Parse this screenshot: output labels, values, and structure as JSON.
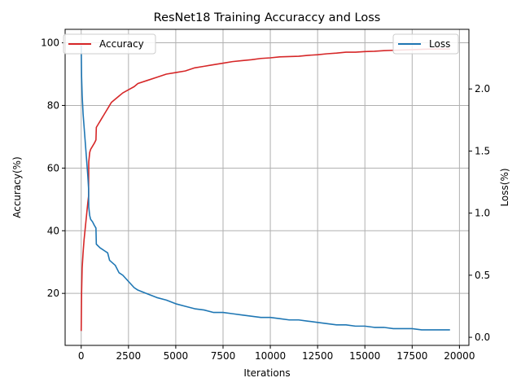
{
  "chart_data": {
    "type": "line",
    "title": "ResNet18 Training Accuraccy and Loss",
    "xlabel": "Iterations",
    "ylabel_left": "Accuracy(%)",
    "ylabel_right": "Loss(%)",
    "xlim": [
      -850,
      20500
    ],
    "ylim_left": [
      3.4,
      104.3
    ],
    "ylim_right": [
      -0.065,
      2.48
    ],
    "x_ticks": [
      0,
      2500,
      5000,
      7500,
      10000,
      12500,
      15000,
      17500,
      20000
    ],
    "y_left_ticks": [
      20,
      40,
      60,
      80,
      100
    ],
    "y_right_ticks": [
      0.0,
      0.5,
      1.0,
      1.5,
      2.0
    ],
    "y_right_tick_labels": [
      "0.0",
      "0.5",
      "1.0",
      "1.5",
      "2.0"
    ],
    "grid": true,
    "legends": [
      {
        "axis": "left",
        "placement": "upper-left",
        "entries": [
          "Accuracy"
        ]
      },
      {
        "axis": "right",
        "placement": "upper-right",
        "entries": [
          "Loss"
        ]
      }
    ],
    "series": [
      {
        "name": "Accuracy",
        "axis": "left",
        "color": "#d62728",
        "x": [
          0,
          20,
          50,
          100,
          150,
          200,
          250,
          300,
          350,
          390,
          400,
          450,
          500,
          600,
          700,
          780,
          800,
          900,
          1000,
          1100,
          1200,
          1300,
          1400,
          1500,
          1600,
          1800,
          2000,
          2200,
          2500,
          2800,
          3000,
          3500,
          4000,
          4500,
          5000,
          5500,
          6000,
          6500,
          7000,
          7500,
          8000,
          8500,
          9000,
          9500,
          10000,
          10500,
          11000,
          11500,
          12000,
          12500,
          13000,
          13500,
          14000,
          14500,
          15000,
          15500,
          16000,
          16500,
          17000,
          17500,
          18000,
          18500,
          19000,
          19500
        ],
        "y": [
          8,
          20,
          28,
          33,
          37,
          40,
          43,
          46,
          49,
          51,
          62,
          65,
          66,
          67,
          68,
          69,
          73,
          74,
          75,
          76,
          77,
          78,
          79,
          80,
          81,
          82,
          83,
          84,
          85,
          86,
          87,
          88,
          89,
          90,
          90.5,
          91,
          92,
          92.5,
          93,
          93.5,
          94,
          94.3,
          94.6,
          95,
          95.2,
          95.5,
          95.6,
          95.7,
          96,
          96.2,
          96.5,
          96.7,
          97,
          97,
          97.2,
          97.3,
          97.5,
          97.6,
          97.7,
          97.8,
          97.9,
          98,
          98,
          98
        ]
      },
      {
        "name": "Loss",
        "axis": "right",
        "color": "#1f77b4",
        "x": [
          0,
          20,
          50,
          100,
          150,
          200,
          250,
          300,
          350,
          390,
          400,
          450,
          500,
          600,
          700,
          780,
          800,
          1000,
          1200,
          1400,
          1500,
          1800,
          2000,
          2200,
          2500,
          2800,
          3000,
          3500,
          4000,
          4500,
          5000,
          5500,
          6000,
          6500,
          7000,
          7500,
          8000,
          8500,
          9000,
          9500,
          10000,
          10500,
          11000,
          11500,
          12000,
          12500,
          13000,
          13500,
          14000,
          14500,
          15000,
          15500,
          16000,
          16500,
          17000,
          17500,
          18000,
          18500,
          19000,
          19500
        ],
        "y": [
          2.35,
          2.1,
          1.95,
          1.8,
          1.7,
          1.6,
          1.5,
          1.4,
          1.3,
          1.2,
          1.05,
          0.98,
          0.95,
          0.93,
          0.9,
          0.88,
          0.75,
          0.72,
          0.7,
          0.68,
          0.62,
          0.58,
          0.52,
          0.5,
          0.45,
          0.4,
          0.38,
          0.35,
          0.32,
          0.3,
          0.27,
          0.25,
          0.23,
          0.22,
          0.2,
          0.2,
          0.19,
          0.18,
          0.17,
          0.16,
          0.16,
          0.15,
          0.14,
          0.14,
          0.13,
          0.12,
          0.11,
          0.1,
          0.1,
          0.09,
          0.09,
          0.08,
          0.08,
          0.07,
          0.07,
          0.07,
          0.06,
          0.06,
          0.06,
          0.06
        ]
      }
    ]
  }
}
